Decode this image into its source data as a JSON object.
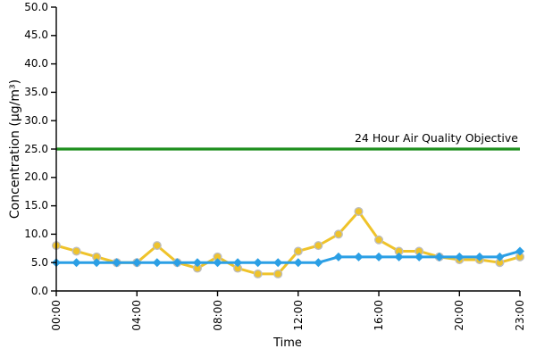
{
  "chart_data": {
    "type": "line",
    "title": "",
    "xlabel": "Time",
    "ylabel": "Concentration (µg/m³)",
    "ylim": [
      0,
      50
    ],
    "grid": false,
    "legend": "none",
    "x_hours": [
      0,
      1,
      2,
      3,
      4,
      5,
      6,
      7,
      8,
      9,
      10,
      11,
      12,
      13,
      14,
      15,
      16,
      17,
      18,
      19,
      20,
      21,
      22,
      23
    ],
    "yticks": [
      {
        "value": 0,
        "label": "0.0"
      },
      {
        "value": 5,
        "label": "5.0"
      },
      {
        "value": 10,
        "label": "10.0"
      },
      {
        "value": 15,
        "label": "15.0"
      },
      {
        "value": 20,
        "label": "20.0"
      },
      {
        "value": 25,
        "label": "25.0"
      },
      {
        "value": 30,
        "label": "30.0"
      },
      {
        "value": 35,
        "label": "35.0"
      },
      {
        "value": 40,
        "label": "40.0"
      },
      {
        "value": 45,
        "label": "45.0"
      },
      {
        "value": 50,
        "label": "50.0"
      }
    ],
    "xticks": [
      {
        "hour": 0,
        "label": "00:00"
      },
      {
        "hour": 4,
        "label": "04:00"
      },
      {
        "hour": 8,
        "label": "08:00"
      },
      {
        "hour": 12,
        "label": "12:00"
      },
      {
        "hour": 16,
        "label": "16:00"
      },
      {
        "hour": 20,
        "label": "20:00"
      },
      {
        "hour": 23,
        "label": "23:00"
      }
    ],
    "series": [
      {
        "name": "gold-series",
        "color": "#EFC32A",
        "marker": "circle",
        "marker_edge_color": "#BDBDBD",
        "values": [
          8,
          7,
          6,
          5,
          5,
          8,
          5,
          4,
          6,
          4,
          3,
          3,
          7,
          8,
          10,
          14,
          9,
          7,
          7,
          6,
          5.5,
          5.5,
          5,
          6
        ]
      },
      {
        "name": "blue-series",
        "color": "#2B9FE5",
        "marker": "diamond",
        "values": [
          5,
          5,
          5,
          5,
          5,
          5,
          5,
          5,
          5,
          5,
          5,
          5,
          5,
          5,
          6,
          6,
          6,
          6,
          6,
          6,
          6,
          6,
          6,
          7
        ]
      }
    ],
    "reference_line": {
      "value": 25,
      "color": "#1E8F1E",
      "label": "24 Hour Air Quality Objective"
    },
    "axis_color": "#000000"
  }
}
